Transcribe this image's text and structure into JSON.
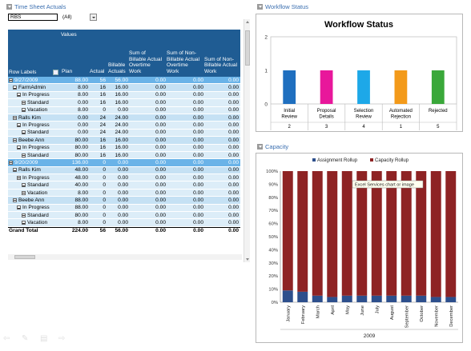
{
  "timesheet": {
    "title": "Time Sheet Actuals",
    "filter_value": "RBS",
    "filter_all": "(All)",
    "header_values": "Values",
    "columns": [
      "Row Labels",
      "Plan",
      "Actual",
      "Billable\nActuals",
      "Sum of\nBillable Actual\nOvertime\nWork",
      "Sum of Non-\nBillable Actual\nOvertime\nWork",
      "Sum of Non-\nBillable Actual\nWork"
    ],
    "rows": [
      {
        "type": "date",
        "label": "9/27/2009",
        "vals": [
          "88.00",
          "56",
          "56.00",
          "0.00",
          "0.00",
          "0.00"
        ]
      },
      {
        "type": "res",
        "label": "FarmAdmin",
        "vals": [
          "8.00",
          "16",
          "16.00",
          "0.00",
          "0.00",
          "0.00"
        ]
      },
      {
        "type": "sub",
        "label": "In Progress",
        "vals": [
          "8.00",
          "16",
          "16.00",
          "0.00",
          "0.00",
          "0.00"
        ]
      },
      {
        "type": "sub2",
        "label": "Standard",
        "vals": [
          "0.00",
          "16",
          "16.00",
          "0.00",
          "0.00",
          "0.00"
        ]
      },
      {
        "type": "sub2",
        "label": "Vacation",
        "vals": [
          "8.00",
          "0",
          "0.00",
          "0.00",
          "0.00",
          "0.00"
        ]
      },
      {
        "type": "res",
        "label": "Ralls Kim",
        "vals": [
          "0.00",
          "24",
          "24.00",
          "0.00",
          "0.00",
          "0.00"
        ]
      },
      {
        "type": "sub",
        "label": "In Progress",
        "vals": [
          "0.00",
          "24",
          "24.00",
          "0.00",
          "0.00",
          "0.00"
        ]
      },
      {
        "type": "sub2",
        "label": "Standard",
        "vals": [
          "0.00",
          "24",
          "24.00",
          "0.00",
          "0.00",
          "0.00"
        ]
      },
      {
        "type": "res",
        "label": "Beebe Ann",
        "vals": [
          "80.00",
          "16",
          "16.00",
          "0.00",
          "0.00",
          "0.00"
        ]
      },
      {
        "type": "sub",
        "label": "In Progress",
        "vals": [
          "80.00",
          "16",
          "16.00",
          "0.00",
          "0.00",
          "0.00"
        ]
      },
      {
        "type": "sub2",
        "label": "Standard",
        "vals": [
          "80.00",
          "16",
          "16.00",
          "0.00",
          "0.00",
          "0.00"
        ]
      },
      {
        "type": "date",
        "label": "9/20/2009",
        "vals": [
          "136.00",
          "0",
          "0.00",
          "0.00",
          "0.00",
          "0.00"
        ]
      },
      {
        "type": "res",
        "label": "Ralls Kim",
        "vals": [
          "48.00",
          "0",
          "0.00",
          "0.00",
          "0.00",
          "0.00"
        ]
      },
      {
        "type": "sub",
        "label": "In Progress",
        "vals": [
          "48.00",
          "0",
          "0.00",
          "0.00",
          "0.00",
          "0.00"
        ]
      },
      {
        "type": "sub2",
        "label": "Standard",
        "vals": [
          "40.00",
          "0",
          "0.00",
          "0.00",
          "0.00",
          "0.00"
        ]
      },
      {
        "type": "sub2",
        "label": "Vacation",
        "vals": [
          "8.00",
          "0",
          "0.00",
          "0.00",
          "0.00",
          "0.00"
        ]
      },
      {
        "type": "res",
        "label": "Beebe Ann",
        "vals": [
          "88.00",
          "0",
          "0.00",
          "0.00",
          "0.00",
          "0.00"
        ]
      },
      {
        "type": "sub",
        "label": "In Progress",
        "vals": [
          "88.00",
          "0",
          "0.00",
          "0.00",
          "0.00",
          "0.00"
        ]
      },
      {
        "type": "sub2",
        "label": "Standard",
        "vals": [
          "80.00",
          "0",
          "0.00",
          "0.00",
          "0.00",
          "0.00"
        ]
      },
      {
        "type": "sub2",
        "label": "Vacation",
        "vals": [
          "8.00",
          "0",
          "0.00",
          "0.00",
          "0.00",
          "0.00"
        ]
      },
      {
        "type": "total",
        "label": "Grand Total",
        "vals": [
          "224.00",
          "56",
          "56.00",
          "0.00",
          "0.00",
          "0.00"
        ]
      }
    ]
  },
  "workflow": {
    "panel_title": "Workflow Status"
  },
  "capacity": {
    "panel_title": "Capacity",
    "tooltip": "Excel Services chart or image"
  },
  "chart_data": [
    {
      "type": "bar",
      "title": "Workflow Status",
      "categories": [
        "Initial Review",
        "Proposal Details",
        "Selection Review",
        "Automated Rejection",
        "Rejected"
      ],
      "values": [
        1,
        1,
        1,
        1,
        1
      ],
      "table_values": [
        "2",
        "3",
        "4",
        "1",
        "5"
      ],
      "colors": [
        "#1f6fbf",
        "#e8179b",
        "#1da8e8",
        "#f39a1a",
        "#3aa83a"
      ],
      "ylim": [
        0,
        2
      ],
      "yticks": [
        "0",
        "1",
        "2"
      ]
    },
    {
      "type": "bar",
      "stacked": true,
      "legend": [
        "Assignment Rollup",
        "Capacity Rollup"
      ],
      "colors": [
        "#2d4f8c",
        "#8e2324"
      ],
      "categories": [
        "January",
        "February",
        "March",
        "April",
        "May",
        "June",
        "July",
        "August",
        "September",
        "October",
        "November",
        "December"
      ],
      "xgroup": "2009",
      "series": [
        {
          "name": "Assignment Rollup",
          "values": [
            9,
            8,
            5,
            4,
            5,
            5,
            5,
            5,
            5,
            5,
            4,
            4
          ]
        },
        {
          "name": "Capacity Rollup",
          "values": [
            91,
            92,
            95,
            96,
            95,
            95,
            95,
            95,
            95,
            95,
            96,
            96
          ]
        }
      ],
      "ylim": [
        0,
        100
      ],
      "yticks": [
        "0%",
        "10%",
        "20%",
        "30%",
        "40%",
        "50%",
        "60%",
        "70%",
        "80%",
        "90%",
        "100%"
      ]
    }
  ],
  "bottom_icons": [
    "back-icon",
    "edit-icon",
    "grid-icon",
    "forward-icon"
  ]
}
